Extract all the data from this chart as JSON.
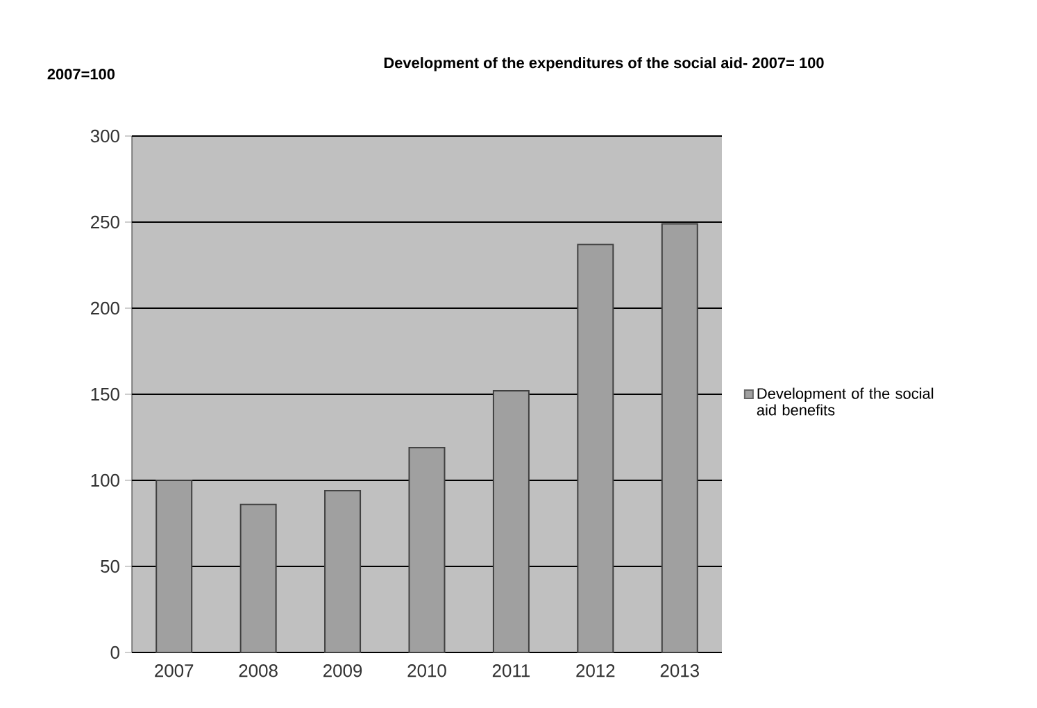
{
  "chart_data": {
    "type": "bar",
    "title": "Development of the expenditures of the social aid- 2007= 100",
    "ylabel": "2007=100",
    "categories": [
      "2007",
      "2008",
      "2009",
      "2010",
      "2011",
      "2012",
      "2013"
    ],
    "series": [
      {
        "name": "Development of the social aid benefits",
        "color": "#a0a0a0",
        "values": [
          100,
          86,
          94,
          119,
          152,
          237,
          249
        ]
      }
    ],
    "ylim": [
      0,
      300
    ],
    "yticks": [
      0,
      50,
      100,
      150,
      200,
      250,
      300
    ],
    "grid": "y",
    "legend": "right"
  }
}
